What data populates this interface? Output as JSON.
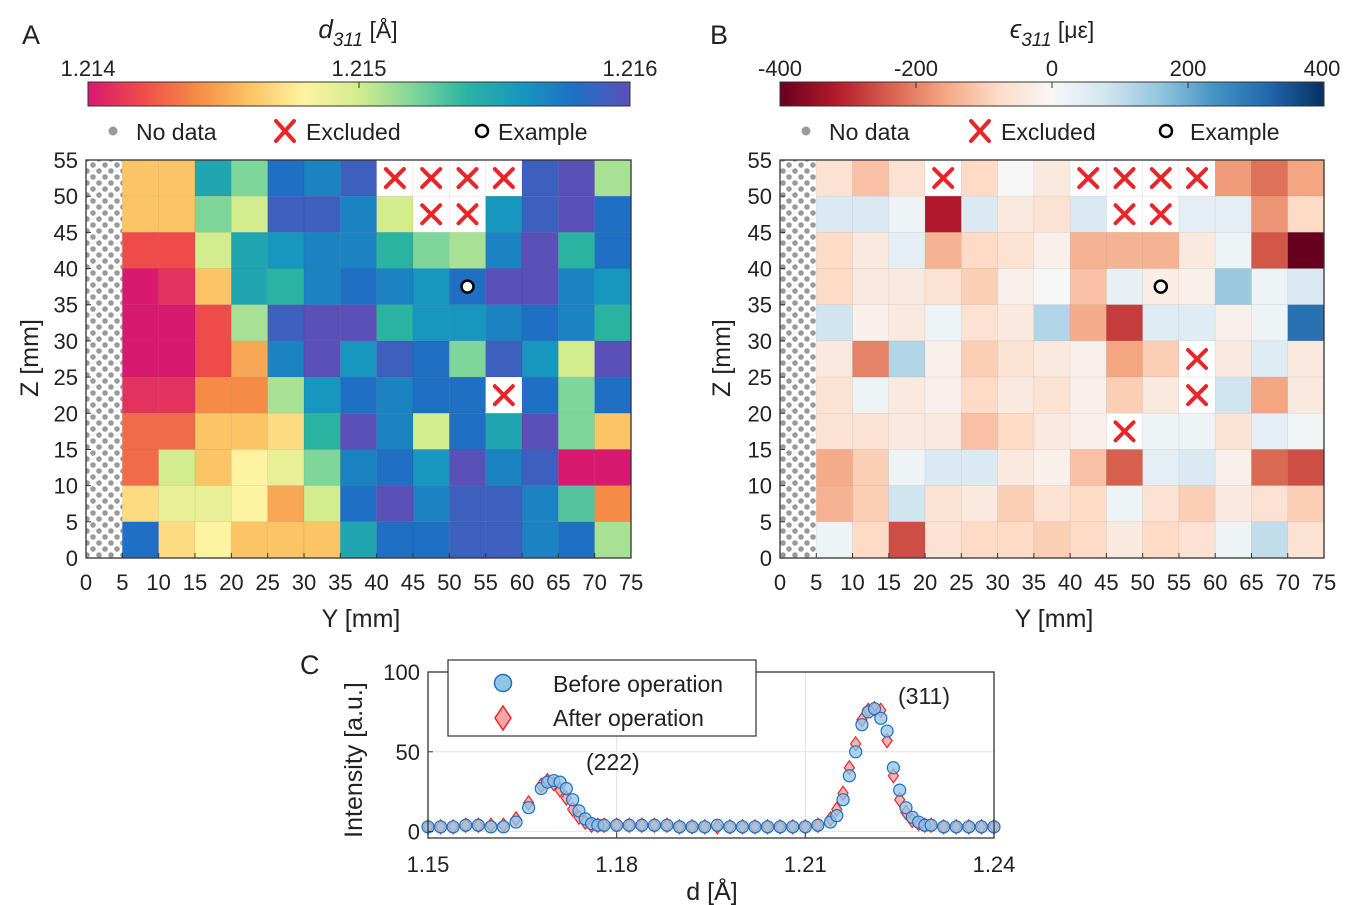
{
  "panels": [
    {
      "label": "A",
      "colorbar": {
        "title": "d",
        "title_sub": "311",
        "title_unit": " [Å]",
        "ticks": [
          "1.214",
          "1.215",
          "1.216"
        ]
      },
      "legend": {
        "nodata": "No data",
        "excluded": "Excluded",
        "example": "Example"
      }
    },
    {
      "label": "B",
      "colorbar": {
        "title": "ϵ",
        "title_sub": "311",
        "title_unit": " [με]",
        "ticks": [
          "-400",
          "-200",
          "0",
          "200",
          "400"
        ]
      },
      "legend": {
        "nodata": "No data",
        "excluded": "Excluded",
        "example": "Example"
      }
    },
    {
      "label": "C",
      "legend": {
        "before": "Before operation",
        "after": "After operation"
      },
      "annotations": [
        "(222)",
        "(311)"
      ]
    }
  ],
  "chart_data": [
    {
      "type": "heatmap",
      "panel": "A",
      "title": "d311 [Å]",
      "xlabel": "Y [mm]",
      "ylabel": "Z [mm]",
      "xlim": [
        0,
        75
      ],
      "ylim": [
        0,
        55
      ],
      "x_ticks": [
        0,
        5,
        10,
        15,
        20,
        25,
        30,
        35,
        40,
        45,
        50,
        55,
        60,
        65,
        70,
        75
      ],
      "y_ticks": [
        0,
        5,
        10,
        15,
        20,
        25,
        30,
        35,
        40,
        45,
        50,
        55
      ],
      "color_range": [
        1.214,
        1.216
      ],
      "colormap": [
        "#d7196f",
        "#ef4b4b",
        "#f58b45",
        "#fbc465",
        "#fef3a0",
        "#d2ec8e",
        "#7fd69a",
        "#2bb3a2",
        "#1797bf",
        "#1f6fc4",
        "#5b4fb8"
      ],
      "no_data_region_y": [
        0,
        5
      ],
      "cell_y_start": [
        5,
        10,
        15,
        20,
        25,
        30,
        35,
        40,
        45,
        50,
        55,
        60,
        65,
        70
      ],
      "cell_z_start": [
        50,
        45,
        40,
        35,
        30,
        25,
        20,
        15,
        10,
        5,
        0
      ],
      "values": [
        [
          1.2146,
          1.2146,
          1.2155,
          1.2152,
          1.2158,
          1.2157,
          1.2159,
          null,
          null,
          null,
          null,
          1.2159,
          1.216,
          1.2151
        ],
        [
          1.2146,
          1.2146,
          1.2152,
          1.215,
          1.2159,
          1.2159,
          1.2157,
          1.215,
          null,
          null,
          1.2156,
          1.2159,
          1.216,
          1.2158
        ],
        [
          1.2142,
          1.2142,
          1.215,
          1.2155,
          1.2156,
          1.2157,
          1.2157,
          1.2154,
          1.2152,
          1.2151,
          1.2157,
          1.216,
          1.2154,
          1.2158
        ],
        [
          1.214,
          1.2141,
          1.2146,
          1.2155,
          1.2154,
          1.2157,
          1.2158,
          1.2157,
          1.2156,
          1.2158,
          1.216,
          1.216,
          1.2157,
          1.2156
        ],
        [
          1.2139,
          1.214,
          1.2142,
          1.2151,
          1.2159,
          1.216,
          1.216,
          1.2154,
          1.2156,
          1.2156,
          1.2157,
          1.2158,
          1.2157,
          1.2154
        ],
        [
          1.2139,
          1.2138,
          1.2142,
          1.2145,
          1.2157,
          1.216,
          1.2156,
          1.2159,
          1.2158,
          1.2152,
          1.2159,
          1.2156,
          1.215,
          1.216
        ],
        [
          1.2141,
          1.2141,
          1.2144,
          1.2144,
          1.2151,
          1.2156,
          1.2158,
          1.2157,
          1.2158,
          1.2158,
          null,
          1.2158,
          1.2152,
          1.2158
        ],
        [
          1.2143,
          1.2143,
          1.2146,
          1.2146,
          1.2147,
          1.2154,
          1.216,
          1.2157,
          1.215,
          1.2158,
          1.2155,
          1.216,
          1.2152,
          1.2146
        ],
        [
          1.2143,
          1.215,
          1.2146,
          1.2148,
          1.2149,
          1.2152,
          1.2157,
          1.2158,
          1.2156,
          1.216,
          1.2157,
          1.2159,
          1.2139,
          1.2138
        ],
        [
          1.2147,
          1.2149,
          1.2149,
          1.2148,
          1.2145,
          1.215,
          1.2158,
          1.216,
          1.2157,
          1.2159,
          1.2159,
          1.2157,
          1.2153,
          1.2144
        ],
        [
          1.2158,
          1.2147,
          1.2148,
          1.2146,
          1.2146,
          1.2146,
          1.2155,
          1.2158,
          1.2158,
          1.2159,
          1.2159,
          1.2157,
          1.2158,
          1.2151
        ]
      ],
      "excluded_cells": [
        [
          40,
          50
        ],
        [
          45,
          50
        ],
        [
          50,
          50
        ],
        [
          55,
          50
        ],
        [
          45,
          45
        ],
        [
          50,
          45
        ],
        [
          55,
          20
        ]
      ],
      "example_point": [
        52.5,
        37.5
      ]
    },
    {
      "type": "heatmap",
      "panel": "B",
      "title": "ϵ311 [με]",
      "xlabel": "Y [mm]",
      "ylabel": "Z [mm]",
      "xlim": [
        0,
        75
      ],
      "ylim": [
        0,
        55
      ],
      "x_ticks": [
        0,
        5,
        10,
        15,
        20,
        25,
        30,
        35,
        40,
        45,
        50,
        55,
        60,
        65,
        70,
        75
      ],
      "y_ticks": [
        0,
        5,
        10,
        15,
        20,
        25,
        30,
        35,
        40,
        45,
        50,
        55
      ],
      "color_range": [
        -400,
        400
      ],
      "colormap": [
        "#67001f",
        "#b2182b",
        "#d6604d",
        "#f4a582",
        "#fddbc7",
        "#f7f7f7",
        "#d1e5f0",
        "#92c5de",
        "#4393c3",
        "#2166ac",
        "#053061"
      ],
      "no_data_region_y": [
        0,
        5
      ],
      "cell_y_start": [
        5,
        10,
        15,
        20,
        25,
        30,
        35,
        40,
        45,
        50,
        55,
        60,
        65,
        70
      ],
      "cell_z_start": [
        50,
        45,
        40,
        35,
        30,
        25,
        20,
        15,
        10,
        5,
        0
      ],
      "values": [
        [
          -60,
          -120,
          -60,
          null,
          -80,
          0,
          -40,
          null,
          null,
          null,
          null,
          -170,
          -220,
          -160
        ],
        [
          60,
          60,
          20,
          -320,
          60,
          -40,
          -60,
          60,
          null,
          null,
          40,
          40,
          -180,
          -80
        ],
        [
          -80,
          -40,
          40,
          -140,
          -80,
          -60,
          -20,
          -140,
          -140,
          -140,
          -40,
          20,
          -250,
          -420
        ],
        [
          -80,
          -40,
          -40,
          -60,
          -100,
          -20,
          0,
          -120,
          30,
          -30,
          -20,
          150,
          20,
          60
        ],
        [
          80,
          -20,
          -40,
          20,
          -60,
          -40,
          120,
          -150,
          -280,
          50,
          50,
          -20,
          20,
          300
        ],
        [
          -40,
          -200,
          120,
          -20,
          -100,
          -60,
          -40,
          -20,
          -160,
          -100,
          null,
          -40,
          50,
          -40
        ],
        [
          -60,
          20,
          -40,
          -20,
          -80,
          -40,
          -60,
          -20,
          -100,
          -40,
          null,
          80,
          -160,
          -40
        ],
        [
          -60,
          -60,
          -40,
          -40,
          -120,
          -80,
          -40,
          -20,
          null,
          20,
          20,
          -60,
          40,
          10
        ],
        [
          -150,
          -100,
          20,
          60,
          60,
          -40,
          -20,
          -120,
          -240,
          40,
          60,
          -20,
          -230,
          -260
        ],
        [
          -140,
          -100,
          80,
          -60,
          -40,
          -100,
          -60,
          -80,
          20,
          -60,
          -100,
          -40,
          -60,
          -100
        ],
        [
          20,
          -80,
          -260,
          -60,
          -80,
          -80,
          -100,
          -80,
          -40,
          -80,
          -60,
          20,
          100,
          -60
        ]
      ],
      "excluded_cells": [
        [
          20,
          50
        ],
        [
          40,
          50
        ],
        [
          45,
          50
        ],
        [
          50,
          50
        ],
        [
          55,
          50
        ],
        [
          45,
          45
        ],
        [
          50,
          45
        ],
        [
          55,
          25
        ],
        [
          55,
          20
        ],
        [
          45,
          15
        ]
      ],
      "example_point": [
        52.5,
        37.5
      ]
    },
    {
      "type": "scatter",
      "panel": "C",
      "xlabel": "d [Å]",
      "ylabel": "Intensity [a.u.]",
      "xlim": [
        1.15,
        1.24
      ],
      "ylim": [
        -4,
        100
      ],
      "x_ticks": [
        1.15,
        1.18,
        1.21,
        1.24
      ],
      "y_ticks": [
        0,
        50,
        100
      ],
      "grid": true,
      "legend_position": "top-left",
      "series": [
        {
          "name": "Before operation",
          "x": [
            1.15,
            1.152,
            1.154,
            1.156,
            1.158,
            1.16,
            1.162,
            1.164,
            1.166,
            1.168,
            1.169,
            1.17,
            1.171,
            1.172,
            1.173,
            1.174,
            1.175,
            1.176,
            1.177,
            1.178,
            1.18,
            1.182,
            1.184,
            1.186,
            1.188,
            1.19,
            1.192,
            1.194,
            1.196,
            1.198,
            1.2,
            1.202,
            1.204,
            1.206,
            1.208,
            1.21,
            1.212,
            1.214,
            1.215,
            1.216,
            1.217,
            1.218,
            1.219,
            1.22,
            1.221,
            1.222,
            1.223,
            1.224,
            1.225,
            1.226,
            1.227,
            1.228,
            1.229,
            1.23,
            1.232,
            1.234,
            1.236,
            1.238,
            1.24
          ],
          "y": [
            3,
            3,
            3,
            4,
            4,
            3,
            3,
            6,
            15,
            27,
            31,
            32,
            31,
            27,
            20,
            13,
            8,
            5,
            4,
            4,
            4,
            4,
            4,
            4,
            4,
            3,
            3,
            3,
            4,
            3,
            3,
            3,
            3,
            3,
            3,
            3,
            4,
            6,
            10,
            20,
            35,
            50,
            67,
            75,
            77,
            71,
            63,
            40,
            26,
            15,
            9,
            6,
            4,
            4,
            3,
            3,
            3,
            3,
            3
          ]
        },
        {
          "name": "After operation",
          "x": [
            1.15,
            1.152,
            1.154,
            1.156,
            1.158,
            1.16,
            1.162,
            1.164,
            1.166,
            1.168,
            1.169,
            1.17,
            1.171,
            1.172,
            1.173,
            1.174,
            1.175,
            1.176,
            1.177,
            1.178,
            1.18,
            1.182,
            1.184,
            1.186,
            1.188,
            1.19,
            1.192,
            1.194,
            1.196,
            1.198,
            1.2,
            1.202,
            1.204,
            1.206,
            1.208,
            1.21,
            1.212,
            1.214,
            1.215,
            1.216,
            1.217,
            1.218,
            1.219,
            1.22,
            1.221,
            1.222,
            1.223,
            1.224,
            1.225,
            1.226,
            1.227,
            1.228,
            1.229,
            1.23,
            1.232,
            1.234,
            1.236,
            1.238,
            1.24
          ],
          "y": [
            3,
            3,
            3,
            4,
            4,
            4,
            4,
            8,
            18,
            29,
            32,
            30,
            26,
            21,
            14,
            9,
            6,
            4,
            4,
            4,
            4,
            4,
            4,
            4,
            4,
            3,
            3,
            3,
            3,
            3,
            3,
            3,
            3,
            3,
            3,
            3,
            4,
            8,
            14,
            24,
            40,
            55,
            70,
            76,
            77,
            76,
            57,
            35,
            20,
            12,
            7,
            5,
            4,
            4,
            3,
            3,
            3,
            3,
            3
          ]
        }
      ],
      "annotations": [
        {
          "text": "(222)",
          "x": 1.176,
          "y": 37
        },
        {
          "text": "(311)",
          "x": 1.225,
          "y": 88
        }
      ]
    }
  ]
}
